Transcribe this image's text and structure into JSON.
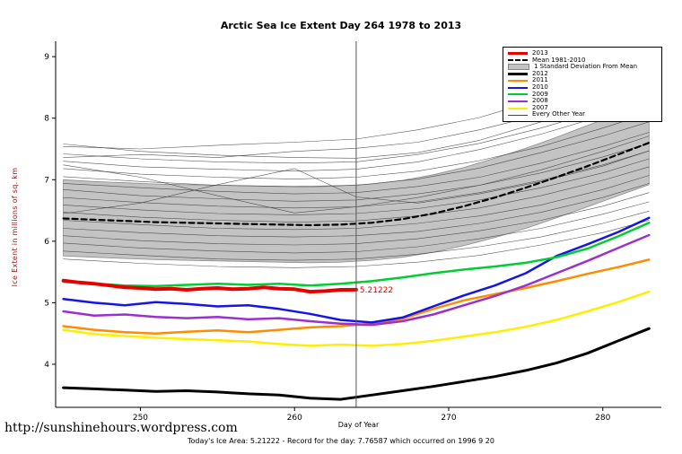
{
  "page": {
    "url_text": "http://sunshinehours.wordpress.com",
    "footer_note": "Today's Ice Area: 5.21222  - Record for the day: 7.76587 which occurred on 1996 9 20"
  },
  "chart_data": {
    "type": "line",
    "title": "Arctic Sea Ice Extent Day 264 1978 to 2013",
    "xlabel": "Day of Year",
    "ylabel": "Ice Extent in millions of sq. km",
    "ylabel_color": "#8b1a1a",
    "xlim": [
      244.5,
      283.8
    ],
    "ylim": [
      3.3,
      9.25
    ],
    "xticks": [
      250,
      260,
      270,
      280
    ],
    "yticks": [
      4,
      5,
      6,
      7,
      8,
      9
    ],
    "axis_color": "#000000",
    "grid": false,
    "legend_position": "top-right",
    "vline": {
      "x": 264,
      "color": "#555555"
    },
    "annotation": {
      "x": 264,
      "y": 5.21222,
      "text": "5.21222",
      "color": "#e60000"
    },
    "x": [
      245,
      247,
      249,
      251,
      253,
      255,
      257,
      259,
      261,
      263,
      265,
      267,
      269,
      271,
      273,
      275,
      277,
      279,
      281,
      283
    ],
    "band": {
      "name": "1 Standard Deviation From Mean",
      "fill": "#c3c3c3",
      "stroke": "#8c8c8c",
      "upper": [
        7.0,
        6.97,
        6.95,
        6.93,
        6.92,
        6.91,
        6.9,
        6.89,
        6.88,
        6.9,
        6.93,
        6.99,
        7.08,
        7.2,
        7.35,
        7.51,
        7.69,
        7.88,
        8.07,
        8.26
      ],
      "lower": [
        5.76,
        5.74,
        5.72,
        5.7,
        5.69,
        5.68,
        5.67,
        5.66,
        5.65,
        5.66,
        5.69,
        5.74,
        5.82,
        5.93,
        6.06,
        6.21,
        6.38,
        6.56,
        6.74,
        6.92
      ]
    },
    "series": [
      {
        "name": "Mean 1981-2010",
        "color": "#000000",
        "width": 2.2,
        "dash": "6,4",
        "values": [
          6.37,
          6.35,
          6.33,
          6.31,
          6.3,
          6.29,
          6.28,
          6.27,
          6.26,
          6.27,
          6.3,
          6.36,
          6.45,
          6.57,
          6.71,
          6.87,
          7.04,
          7.22,
          7.41,
          7.6
        ]
      },
      {
        "name": "2012",
        "color": "#000000",
        "width": 3,
        "values": [
          3.62,
          3.6,
          3.58,
          3.56,
          3.57,
          3.55,
          3.52,
          3.5,
          3.45,
          3.43,
          3.5,
          3.57,
          3.64,
          3.72,
          3.8,
          3.9,
          4.02,
          4.18,
          4.38,
          4.58
        ]
      },
      {
        "name": "2011",
        "color": "#ff8c00",
        "width": 2.5,
        "values": [
          4.62,
          4.56,
          4.52,
          4.5,
          4.53,
          4.55,
          4.52,
          4.56,
          4.6,
          4.62,
          4.66,
          4.74,
          4.9,
          5.04,
          5.14,
          5.24,
          5.35,
          5.47,
          5.58,
          5.7
        ]
      },
      {
        "name": "2010",
        "color": "#1414e6",
        "width": 2.5,
        "values": [
          5.06,
          5.0,
          4.96,
          5.01,
          4.98,
          4.94,
          4.96,
          4.9,
          4.82,
          4.72,
          4.68,
          4.76,
          4.94,
          5.12,
          5.28,
          5.48,
          5.76,
          5.95,
          6.15,
          6.38
        ]
      },
      {
        "name": "2009",
        "color": "#00cc33",
        "width": 2.5,
        "values": [
          5.34,
          5.31,
          5.28,
          5.27,
          5.29,
          5.31,
          5.29,
          5.31,
          5.28,
          5.31,
          5.35,
          5.41,
          5.48,
          5.54,
          5.59,
          5.65,
          5.74,
          5.88,
          6.08,
          6.3
        ]
      },
      {
        "name": "2008",
        "color": "#9b30d0",
        "width": 2.5,
        "values": [
          4.86,
          4.79,
          4.81,
          4.77,
          4.75,
          4.77,
          4.73,
          4.75,
          4.7,
          4.66,
          4.64,
          4.7,
          4.81,
          4.96,
          5.11,
          5.28,
          5.48,
          5.68,
          5.89,
          6.1
        ]
      },
      {
        "name": "2007",
        "color": "#ffee00",
        "width": 2.5,
        "values": [
          4.56,
          4.49,
          4.46,
          4.43,
          4.41,
          4.39,
          4.37,
          4.33,
          4.3,
          4.32,
          4.3,
          4.33,
          4.38,
          4.45,
          4.52,
          4.61,
          4.72,
          4.86,
          5.01,
          5.18
        ]
      },
      {
        "name": "2013",
        "color": "#e60000",
        "width": 4,
        "points": [
          [
            245,
            5.36
          ],
          [
            246,
            5.33
          ],
          [
            247,
            5.31
          ],
          [
            248,
            5.28
          ],
          [
            249,
            5.25
          ],
          [
            250,
            5.24
          ],
          [
            251,
            5.22
          ],
          [
            252,
            5.23
          ],
          [
            253,
            5.21
          ],
          [
            254,
            5.23
          ],
          [
            255,
            5.24
          ],
          [
            256,
            5.22
          ],
          [
            257,
            5.23
          ],
          [
            258,
            5.25
          ],
          [
            259,
            5.23
          ],
          [
            260,
            5.22
          ],
          [
            261,
            5.18
          ],
          [
            262,
            5.19
          ],
          [
            263,
            5.21
          ],
          [
            264,
            5.212
          ]
        ]
      }
    ],
    "background_label": "Every Other Year",
    "background_color": "#3a3a3a",
    "bg_x": [
      245,
      250,
      255,
      260,
      264,
      268,
      272,
      276,
      280,
      283
    ],
    "background_series": [
      [
        7.58,
        7.46,
        7.4,
        7.36,
        7.35,
        7.44,
        7.64,
        7.94,
        8.28,
        8.52
      ],
      [
        7.42,
        7.34,
        7.29,
        7.27,
        7.29,
        7.41,
        7.59,
        7.84,
        8.14,
        8.38
      ],
      [
        7.3,
        7.21,
        7.17,
        7.14,
        7.17,
        7.29,
        7.49,
        7.74,
        8.04,
        8.28
      ],
      [
        7.18,
        7.09,
        7.04,
        7.01,
        7.04,
        7.14,
        7.31,
        7.54,
        7.84,
        8.08
      ],
      [
        7.05,
        6.97,
        6.91,
        6.89,
        6.91,
        7.01,
        7.19,
        7.44,
        7.71,
        7.94
      ],
      [
        6.94,
        6.87,
        6.81,
        6.77,
        6.79,
        6.89,
        7.04,
        7.27,
        7.54,
        7.77
      ],
      [
        6.84,
        6.74,
        6.69,
        6.65,
        6.67,
        6.77,
        6.91,
        7.11,
        7.37,
        7.59
      ],
      [
        6.71,
        6.63,
        6.57,
        6.54,
        6.56,
        6.64,
        6.79,
        6.99,
        7.24,
        7.47
      ],
      [
        6.59,
        6.51,
        6.45,
        6.43,
        6.45,
        6.53,
        6.67,
        6.87,
        7.11,
        7.34
      ],
      [
        6.47,
        6.39,
        6.34,
        6.31,
        6.33,
        6.41,
        6.54,
        6.74,
        6.99,
        7.21
      ],
      [
        6.34,
        6.27,
        6.21,
        6.19,
        6.21,
        6.29,
        6.41,
        6.59,
        6.84,
        7.07
      ],
      [
        6.21,
        6.14,
        6.09,
        6.07,
        6.09,
        6.16,
        6.29,
        6.47,
        6.71,
        6.94
      ],
      [
        6.09,
        6.01,
        5.96,
        5.94,
        5.96,
        6.04,
        6.17,
        6.34,
        6.57,
        6.79
      ],
      [
        5.97,
        5.89,
        5.84,
        5.81,
        5.83,
        5.91,
        6.04,
        6.21,
        6.44,
        6.64
      ],
      [
        5.84,
        5.77,
        5.71,
        5.69,
        5.71,
        5.79,
        5.91,
        6.07,
        6.29,
        6.49
      ],
      [
        5.71,
        5.64,
        5.59,
        5.57,
        5.59,
        5.66,
        5.77,
        5.94,
        6.14,
        6.34
      ],
      [
        6.45,
        6.62,
        6.92,
        7.18,
        6.72,
        6.62,
        6.77,
        6.97,
        7.22,
        7.47
      ],
      [
        7.24,
        7.04,
        6.74,
        6.46,
        6.56,
        6.71,
        6.91,
        7.16,
        7.46,
        7.71
      ],
      [
        7.54,
        7.5,
        7.56,
        7.61,
        7.66,
        7.81,
        8.01,
        8.31,
        8.66,
        8.96
      ],
      [
        7.36,
        7.41,
        7.36,
        7.46,
        7.51,
        7.61,
        7.81,
        8.06,
        8.41,
        8.71
      ]
    ],
    "legend": [
      {
        "label": "2013",
        "swatch": "thick-line",
        "color": "#e60000"
      },
      {
        "label": "Mean 1981-2010",
        "swatch": "dashed-line",
        "color": "#000000"
      },
      {
        "label": "1 Standard Deviation From Mean",
        "swatch": "box",
        "color": "#c3c3c3"
      },
      {
        "label": "2012",
        "swatch": "thick-line",
        "color": "#000000"
      },
      {
        "label": "2011",
        "swatch": "line",
        "color": "#ff8c00"
      },
      {
        "label": "2010",
        "swatch": "line",
        "color": "#1414e6"
      },
      {
        "label": "2009",
        "swatch": "line",
        "color": "#00cc33"
      },
      {
        "label": "2008",
        "swatch": "line",
        "color": "#9b30d0"
      },
      {
        "label": "2007",
        "swatch": "line",
        "color": "#ffee00"
      },
      {
        "label": "Every Other Year",
        "swatch": "thin-line",
        "color": "#444444"
      }
    ]
  }
}
